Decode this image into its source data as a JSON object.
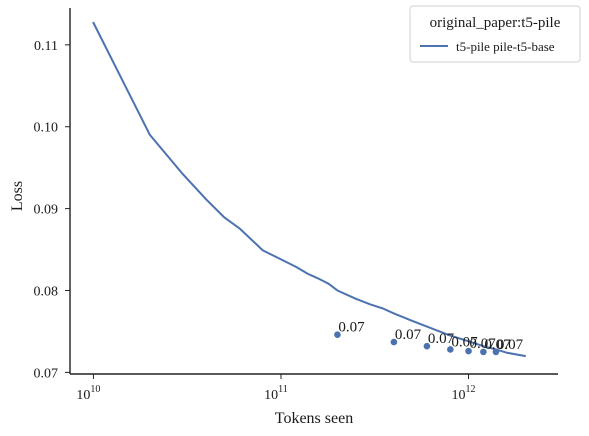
{
  "chart_data": {
    "type": "line",
    "xlabel": "Tokens seen",
    "ylabel": "Loss",
    "x_scale": "log",
    "xlim": [
      7500000000.0,
      3000000000000.0
    ],
    "ylim": [
      0.0698,
      0.1145
    ],
    "x_ticks": [
      {
        "value": 10000000000.0,
        "base": "10",
        "exp": "10"
      },
      {
        "value": 100000000000.0,
        "base": "10",
        "exp": "11"
      },
      {
        "value": 1000000000000.0,
        "base": "10",
        "exp": "12"
      }
    ],
    "y_ticks": [
      {
        "value": 0.07,
        "label": "0.07"
      },
      {
        "value": 0.08,
        "label": "0.08"
      },
      {
        "value": 0.09,
        "label": "0.09"
      },
      {
        "value": 0.1,
        "label": "0.10"
      },
      {
        "value": 0.11,
        "label": "0.11"
      }
    ],
    "grid": false,
    "legend": {
      "title": "original_paper:t5-pile",
      "placement": "top-right"
    },
    "series": [
      {
        "name": "t5-pile pile-t5-base",
        "color": "#4c72b0",
        "x": [
          10000000000.0,
          20000000000.0,
          30000000000.0,
          40000000000.0,
          50000000000.0,
          60000000000.0,
          80000000000.0,
          100000000000.0,
          120000000000.0,
          140000000000.0,
          150000000000.0,
          160000000000.0,
          170000000000.0,
          180000000000.0,
          200000000000.0,
          250000000000.0,
          300000000000.0,
          350000000000.0,
          400000000000.0,
          500000000000.0,
          600000000000.0,
          700000000000.0,
          800000000000.0,
          1000000000000.0,
          1200000000000.0,
          1400000000000.0,
          1600000000000.0,
          2000000000000.0
        ],
        "y": [
          0.1127,
          0.099,
          0.0942,
          0.0911,
          0.0889,
          0.0876,
          0.0849,
          0.0838,
          0.0829,
          0.082,
          0.0817,
          0.0814,
          0.0811,
          0.0808,
          0.08,
          0.079,
          0.0783,
          0.0778,
          0.0772,
          0.0763,
          0.0756,
          0.075,
          0.0745,
          0.0738,
          0.0732,
          0.0728,
          0.0724,
          0.072
        ]
      }
    ],
    "points": {
      "color": "#4c72b0",
      "x": [
        200000000000.0,
        400000000000.0,
        600000000000.0,
        800000000000.0,
        1000000000000.0,
        1200000000000.0,
        1400000000000.0
      ],
      "y": [
        0.0746,
        0.0737,
        0.0732,
        0.0728,
        0.0726,
        0.0725,
        0.0725
      ],
      "labels": [
        "0.07",
        "0.07",
        "0.07",
        "0.07",
        "0.07",
        "0.07",
        "0.07"
      ]
    }
  }
}
